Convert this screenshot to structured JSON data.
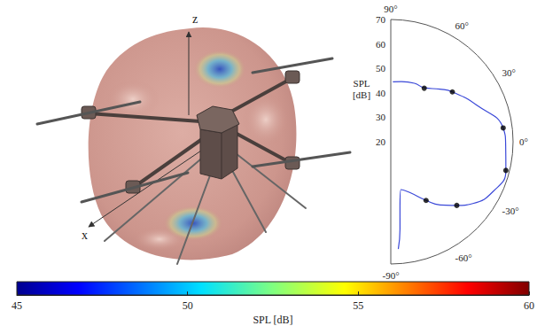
{
  "chart_data": [
    {
      "type": "polar",
      "xlim": [
        -90,
        90
      ],
      "xticks": [
        {
          "value": -90,
          "label": "-90°"
        },
        {
          "value": -60,
          "label": "-60°"
        },
        {
          "value": -30,
          "label": "-30°"
        },
        {
          "value": 0,
          "label": "0°"
        },
        {
          "value": 30,
          "label": "30°"
        },
        {
          "value": 60,
          "label": "60°"
        },
        {
          "value": 90,
          "label": "90°"
        }
      ],
      "ylim": [
        20,
        70
      ],
      "yticks": [
        20,
        30,
        40,
        50,
        60,
        70
      ],
      "ylabel": "SPL [dB]",
      "grid": false,
      "series": [
        {
          "type": "line",
          "color": "#3a48d8",
          "x": [
            88,
            80,
            68,
            58,
            47,
            39,
            23,
            7,
            -2,
            -14,
            -26,
            -37,
            -44,
            -52,
            -59,
            -70,
            -78,
            -82,
            -84,
            -86
          ],
          "values": [
            44.5,
            45,
            45.8,
            46,
            49.4,
            52.4,
            58.2,
            66.3,
            67,
            68.5,
            66.5,
            62,
            57.5,
            52.8,
            48,
            42,
            40,
            47,
            56,
            64
          ]
        },
        {
          "type": "scatter",
          "color": "#000000",
          "marker": "circle",
          "x": [
            58,
            39,
            7,
            -14,
            -44,
            -59
          ],
          "values": [
            45.8,
            52.4,
            66.3,
            68.5,
            57.5,
            48
          ]
        }
      ]
    },
    {
      "type": "colorbar",
      "xlabel": "SPL [dB]",
      "xlim": [
        45,
        60
      ],
      "xticks": [
        45,
        50,
        55,
        60
      ]
    }
  ],
  "illustration": {
    "labels": [
      "z",
      "x"
    ]
  }
}
